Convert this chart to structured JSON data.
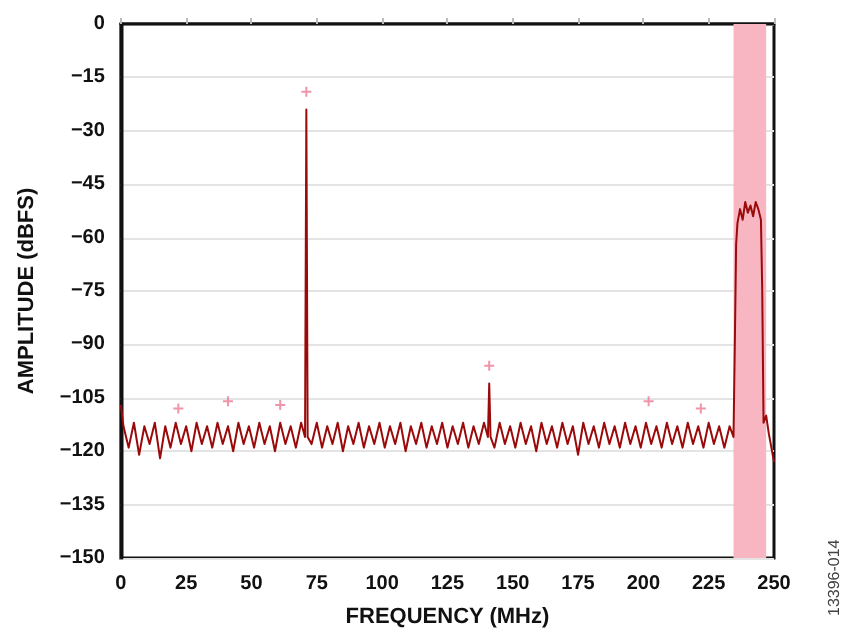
{
  "chart_data": {
    "type": "line",
    "xlabel": "FREQUENCY (MHz)",
    "ylabel": "AMPLITUDE (dBFS)",
    "xlim": [
      0,
      250
    ],
    "xticks": [
      0,
      25,
      50,
      75,
      100,
      125,
      150,
      175,
      200,
      225,
      250
    ],
    "ylim": [
      -150,
      0
    ],
    "yticks": [
      -150,
      -135,
      -120,
      -105,
      -90,
      -75,
      -60,
      -45,
      -30,
      -15,
      0
    ],
    "grid": "y",
    "bands": [
      {
        "axis": "x",
        "from": 234.5,
        "to": 247,
        "color": "#f7b6c2"
      }
    ],
    "annotations": [
      "13396-014"
    ],
    "series": [
      {
        "color": "#9b0a0a",
        "marker": "none",
        "x": [
          0,
          1,
          3,
          5,
          7,
          9,
          11,
          13,
          15,
          17,
          19,
          21,
          23,
          25,
          27,
          29,
          31,
          33,
          35,
          37,
          39,
          41,
          43,
          45,
          47,
          49,
          51,
          53,
          55,
          57,
          59,
          61,
          63,
          65,
          67,
          69,
          70.5,
          71,
          71.5,
          73,
          75,
          77,
          79,
          81,
          83,
          85,
          87,
          89,
          91,
          93,
          95,
          97,
          99,
          101,
          103,
          105,
          107,
          109,
          111,
          113,
          115,
          117,
          119,
          121,
          123,
          125,
          127,
          129,
          131,
          133,
          135,
          137,
          139,
          140.5,
          141,
          141.5,
          143,
          145,
          147,
          149,
          151,
          153,
          155,
          157,
          159,
          161,
          163,
          165,
          167,
          169,
          171,
          173,
          175,
          177,
          179,
          181,
          183,
          185,
          187,
          189,
          191,
          193,
          195,
          197,
          199,
          201,
          203,
          205,
          207,
          209,
          211,
          213,
          215,
          217,
          219,
          221,
          223,
          225,
          227,
          229,
          231,
          233,
          234.5,
          235,
          235.5,
          236,
          237,
          238,
          239,
          240,
          241,
          242,
          243,
          244,
          245,
          245.5,
          246,
          247,
          248,
          249,
          250
        ],
        "values": [
          -107,
          -113,
          -119,
          -112,
          -121,
          -113,
          -118,
          -112,
          -122,
          -113,
          -119,
          -112,
          -118,
          -113,
          -120,
          -112,
          -118,
          -113,
          -119,
          -112,
          -118,
          -113,
          -120,
          -112,
          -118,
          -113,
          -119,
          -112,
          -118,
          -113,
          -120,
          -112,
          -118,
          -113,
          -119,
          -112,
          -116,
          -24,
          -116,
          -118,
          -112,
          -119,
          -113,
          -118,
          -112,
          -120,
          -113,
          -118,
          -112,
          -119,
          -113,
          -118,
          -112,
          -119,
          -113,
          -118,
          -112,
          -120,
          -113,
          -118,
          -112,
          -119,
          -113,
          -118,
          -112,
          -119,
          -113,
          -118,
          -112,
          -119,
          -113,
          -118,
          -112,
          -116,
          -101,
          -116,
          -119,
          -112,
          -118,
          -113,
          -119,
          -112,
          -118,
          -113,
          -120,
          -112,
          -118,
          -113,
          -119,
          -112,
          -118,
          -113,
          -121,
          -112,
          -118,
          -113,
          -119,
          -112,
          -118,
          -113,
          -119,
          -112,
          -118,
          -113,
          -119,
          -112,
          -118,
          -113,
          -119,
          -112,
          -118,
          -113,
          -119,
          -112,
          -118,
          -113,
          -119,
          -112,
          -118,
          -113,
          -119,
          -113,
          -116,
          -90,
          -62,
          -56,
          -52,
          -55,
          -50,
          -53,
          -51,
          -54,
          -50,
          -52,
          -55,
          -75,
          -112,
          -110,
          -115,
          -119,
          -123
        ]
      },
      {
        "type": "scatter",
        "color": "#e87a94",
        "marker": "cross",
        "x": [
          22,
          41,
          61,
          71,
          141,
          202,
          222
        ],
        "values": [
          -108,
          -106,
          -107,
          -19,
          -96,
          -106,
          -108
        ]
      }
    ]
  }
}
